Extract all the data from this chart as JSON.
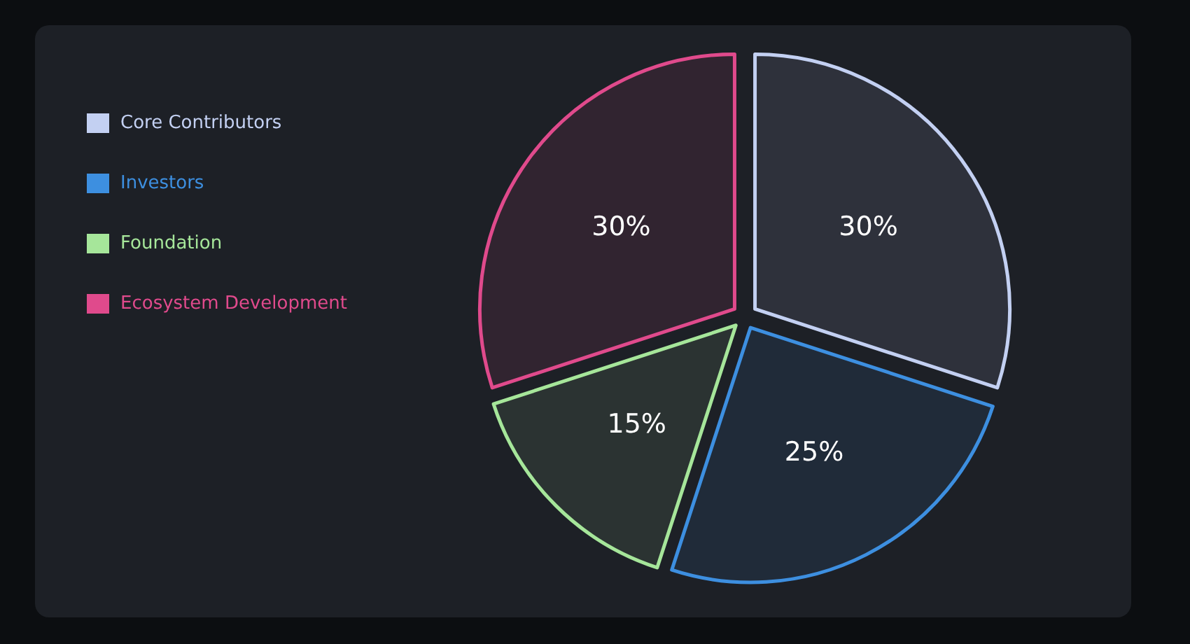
{
  "chart_data": {
    "type": "pie",
    "categories": [
      "Core Contributors",
      "Investors",
      "Foundation",
      "Ecosystem Development"
    ],
    "values": [
      30,
      25,
      15,
      30
    ],
    "colors": [
      "#c3d0f2",
      "#3d8fe0",
      "#a6e69a",
      "#e04a8c"
    ],
    "value_labels": [
      "30%",
      "25%",
      "15%",
      "30%"
    ],
    "legend": "top left"
  }
}
